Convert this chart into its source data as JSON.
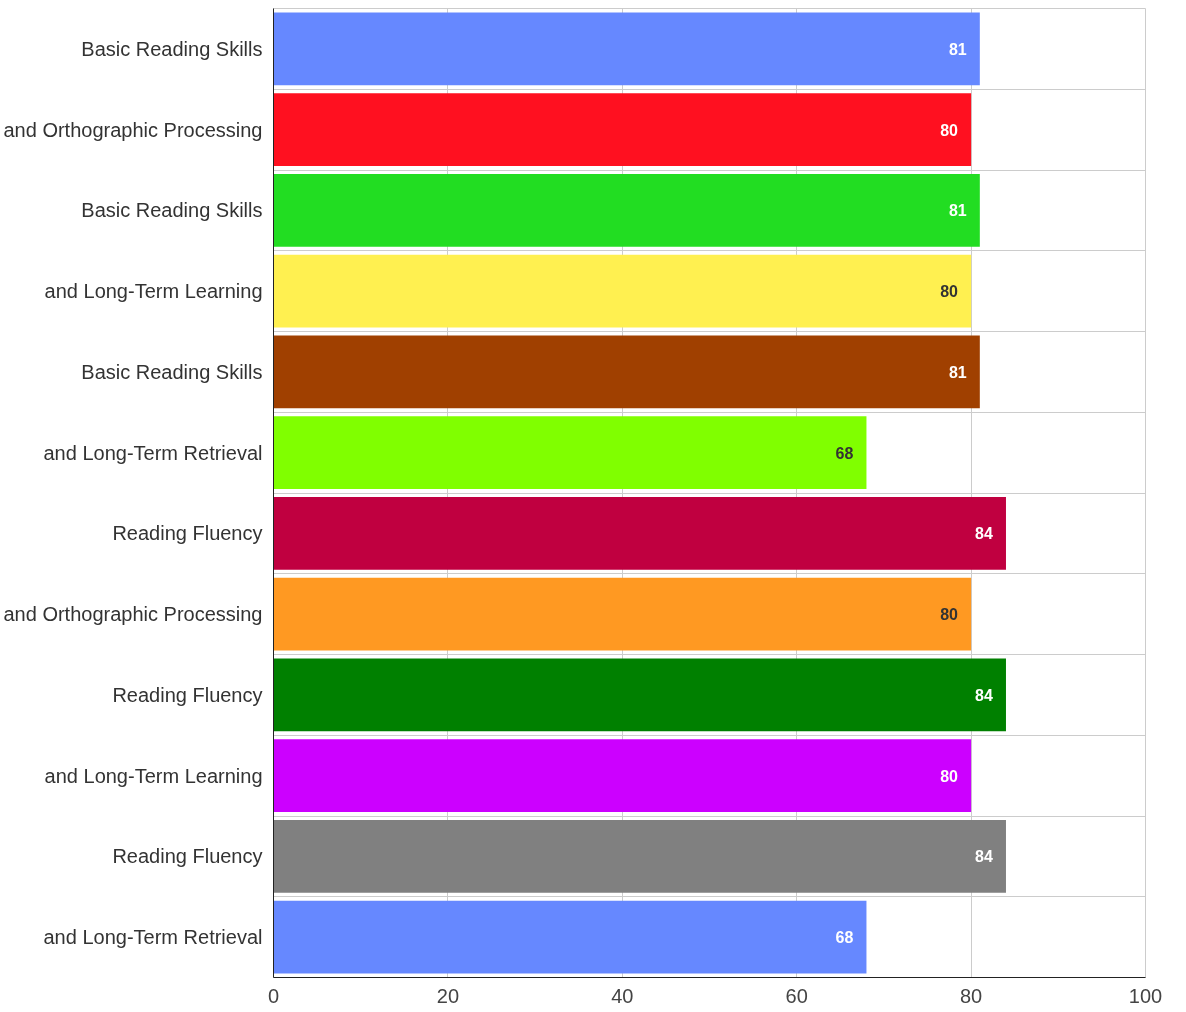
{
  "chart_data": {
    "type": "bar",
    "orientation": "horizontal",
    "categories": [
      "Basic Reading Skills",
      "and Orthographic Processing",
      "Basic Reading Skills",
      "and Long-Term Learning",
      "Basic Reading Skills",
      "and Long-Term Retrieval",
      "Reading Fluency",
      "and Orthographic Processing",
      "Reading Fluency",
      "and Long-Term Learning",
      "Reading Fluency",
      "and Long-Term Retrieval"
    ],
    "values": [
      81,
      80,
      81,
      80,
      81,
      68,
      84,
      80,
      84,
      80,
      84,
      68
    ],
    "colors": [
      "#6688ff",
      "#ff1020",
      "#22dd22",
      "#fff050",
      "#a04000",
      "#80ff00",
      "#c00040",
      "#ff9922",
      "#008000",
      "#cc00ff",
      "#808080",
      "#6688ff"
    ],
    "xlim": [
      0,
      100
    ],
    "xticks": [
      0,
      20,
      40,
      60,
      80,
      100
    ],
    "grid": true,
    "data_labels": true
  }
}
